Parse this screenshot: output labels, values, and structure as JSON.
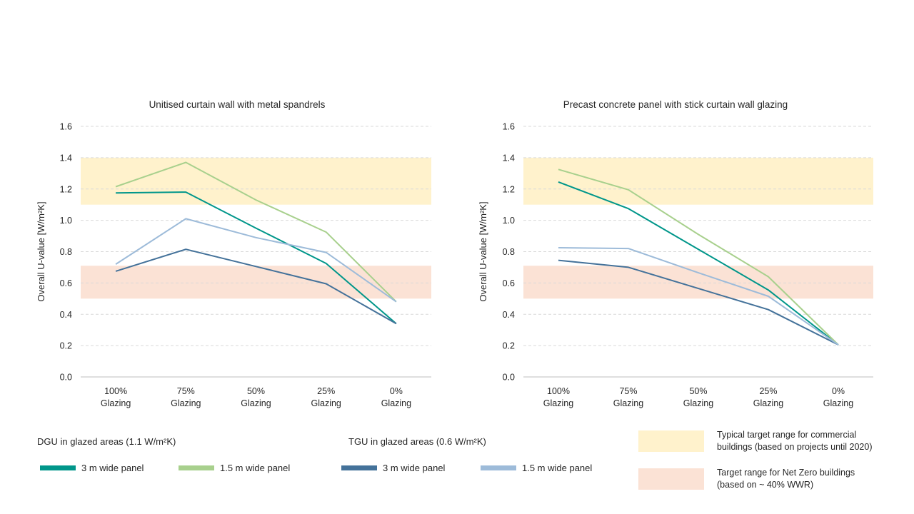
{
  "colors": {
    "dgu_3m": "#00968a",
    "dgu_1_5m": "#a8d08d",
    "tgu_3m": "#44729a",
    "tgu_1_5m": "#9dbbd9",
    "band_commercial": "#fff2cc",
    "band_netzero": "#fbe2d5",
    "grid": "#d9d9d9",
    "axis": "#bfbfbf",
    "text": "#262626"
  },
  "chart_data": [
    {
      "type": "line",
      "title": "Unitised curtain wall with metal spandrels",
      "ylabel": "Overall U-value [W/m²K]",
      "ylim": [
        0,
        1.6
      ],
      "yticks": [
        "0.0",
        "0.2",
        "0.4",
        "0.6",
        "0.8",
        "1.0",
        "1.2",
        "1.4",
        "1.6"
      ],
      "categories": [
        [
          "100%",
          "Glazing"
        ],
        [
          "75%",
          "Glazing"
        ],
        [
          "50%",
          "Glazing"
        ],
        [
          "25%",
          "Glazing"
        ],
        [
          "0%",
          "Glazing"
        ]
      ],
      "bands": [
        {
          "key": "commercial",
          "from": 1.1,
          "to": 1.4
        },
        {
          "key": "netzero",
          "from": 0.5,
          "to": 0.71
        }
      ],
      "series": [
        {
          "key": "dgu_3m",
          "values": [
            1.175,
            1.18,
            0.95,
            0.725,
            0.34
          ]
        },
        {
          "key": "dgu_1_5m",
          "values": [
            1.215,
            1.37,
            1.13,
            0.925,
            0.48
          ]
        },
        {
          "key": "tgu_3m",
          "values": [
            0.675,
            0.815,
            0.705,
            0.595,
            0.34
          ]
        },
        {
          "key": "tgu_1_5m",
          "values": [
            0.72,
            1.01,
            0.89,
            0.795,
            0.48
          ]
        }
      ]
    },
    {
      "type": "line",
      "title": "Precast concrete panel with stick curtain wall glazing",
      "ylabel": "Overall U-value [W/m²K]",
      "ylim": [
        0,
        1.6
      ],
      "yticks": [
        "0.0",
        "0.2",
        "0.4",
        "0.6",
        "0.8",
        "1.0",
        "1.2",
        "1.4",
        "1.6"
      ],
      "categories": [
        [
          "100%",
          "Glazing"
        ],
        [
          "75%",
          "Glazing"
        ],
        [
          "50%",
          "Glazing"
        ],
        [
          "25%",
          "Glazing"
        ],
        [
          "0%",
          "Glazing"
        ]
      ],
      "bands": [
        {
          "key": "commercial",
          "from": 1.1,
          "to": 1.4
        },
        {
          "key": "netzero",
          "from": 0.5,
          "to": 0.71
        }
      ],
      "series": [
        {
          "key": "dgu_3m",
          "values": [
            1.245,
            1.075,
            0.815,
            0.555,
            0.205
          ]
        },
        {
          "key": "dgu_1_5m",
          "values": [
            1.325,
            1.195,
            0.91,
            0.64,
            0.205
          ]
        },
        {
          "key": "tgu_3m",
          "values": [
            0.745,
            0.7,
            0.565,
            0.43,
            0.205
          ]
        },
        {
          "key": "tgu_1_5m",
          "values": [
            0.825,
            0.82,
            0.665,
            0.515,
            0.205
          ]
        }
      ]
    }
  ],
  "legend": {
    "dgu_title": "DGU in glazed areas (1.1 W/m²K)",
    "tgu_title": "TGU in glazed areas (0.6 W/m²K)",
    "dgu_3m": "3 m wide panel",
    "dgu_1_5m": "1.5 m wide panel",
    "tgu_3m": "3 m wide panel",
    "tgu_1_5m": "1.5 m wide panel",
    "commercial_line1": "Typical target range for commercial",
    "commercial_line2": "buildings (based on projects until 2020)",
    "netzero_line1": "Target range for Net Zero buildings",
    "netzero_line2": "(based on ~ 40% WWR)"
  }
}
